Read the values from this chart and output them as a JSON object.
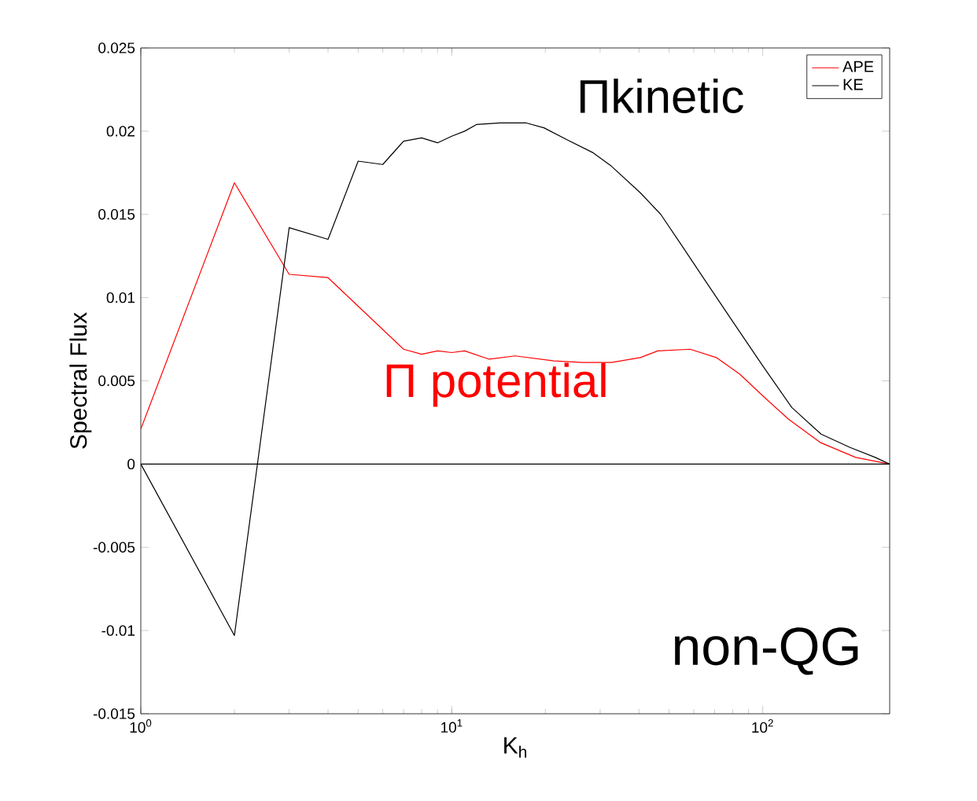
{
  "chart_data": {
    "type": "line",
    "xlabel": "K$_{h}$",
    "ylabel": "Spectral Flux",
    "log": "x",
    "xlim": [
      1,
      256
    ],
    "ylim": [
      -0.015,
      0.025
    ],
    "xticks": [
      {
        "value": 1,
        "label": "10$^{0}$"
      },
      {
        "value": 10,
        "label": "10$^{1}$"
      },
      {
        "value": 100,
        "label": "10$^{2}$"
      }
    ],
    "yticks": [
      -0.015,
      -0.01,
      -0.005,
      0,
      0.005,
      0.01,
      0.015,
      0.02,
      0.025
    ],
    "grid": false,
    "legend": "top right",
    "marker": "none",
    "line_style": "solid",
    "series": [
      {
        "name": "APE",
        "color": "#ff0000",
        "x": [
          1,
          2,
          3,
          4,
          7,
          8,
          9,
          10,
          11,
          13.2,
          16,
          21.3,
          26.4,
          32.6,
          40.4,
          46,
          58.4,
          70.9,
          84.4,
          100,
          121,
          153,
          199,
          256
        ],
        "values": [
          0.0021,
          0.0169,
          0.0114,
          0.0112,
          0.0069,
          0.0066,
          0.0068,
          0.0067,
          0.0068,
          0.0063,
          0.0065,
          0.0062,
          0.0061,
          0.0061,
          0.0064,
          0.0068,
          0.0069,
          0.0064,
          0.0054,
          0.0041,
          0.0027,
          0.0013,
          0.0004,
          0
        ]
      },
      {
        "name": "KE",
        "color": "#000000",
        "x": [
          1,
          2,
          3,
          4,
          5,
          6,
          7,
          8,
          9,
          10,
          11,
          12,
          14.3,
          17.3,
          19.8,
          23.4,
          28.5,
          32.6,
          40.4,
          47,
          54.6,
          64.9,
          80.5,
          100,
          124,
          154,
          191,
          230,
          256
        ],
        "values": [
          0,
          -0.0103,
          0.0142,
          0.0135,
          0.0182,
          0.018,
          0.0194,
          0.0196,
          0.0193,
          0.0197,
          0.02,
          0.0204,
          0.0205,
          0.0205,
          0.0202,
          0.0195,
          0.0187,
          0.0179,
          0.0163,
          0.015,
          0.0132,
          0.0111,
          0.0085,
          0.0059,
          0.0034,
          0.0018,
          0.001,
          0.0004,
          0
        ]
      }
    ],
    "ref_lines": [
      {
        "axis": "y",
        "value": 0,
        "color": "#000000"
      }
    ],
    "annotations": [
      "Πkinetic",
      "Π potential",
      "non-QG"
    ]
  }
}
